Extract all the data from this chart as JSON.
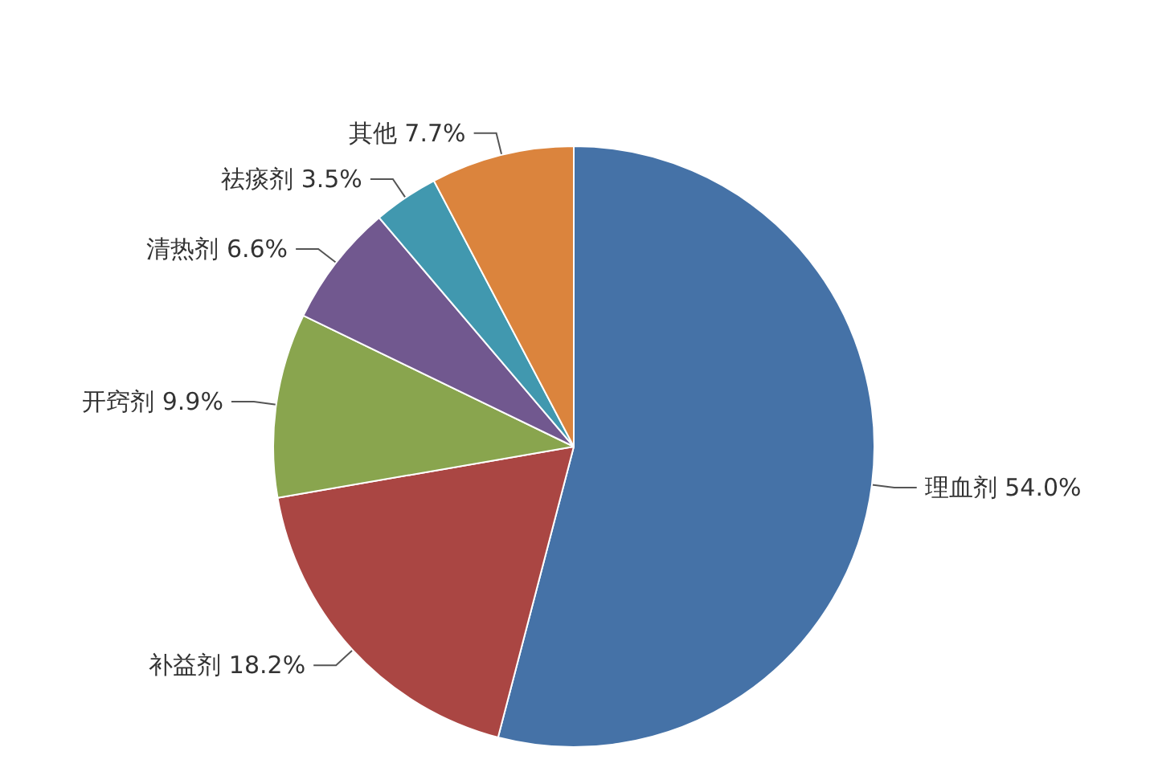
{
  "chart_data": {
    "type": "pie",
    "categories": [
      "理血剂",
      "补益剂",
      "开窍剂",
      "清热剂",
      "祛痰剂",
      "其他"
    ],
    "values": [
      54.0,
      18.2,
      9.9,
      6.6,
      3.5,
      7.7
    ],
    "colors": [
      "#4572a7",
      "#aa4643",
      "#89a54e",
      "#71588f",
      "#4198af",
      "#db843d"
    ],
    "value_labels": [
      "54.0%",
      "18.2%",
      "9.9%",
      "6.6%",
      "3.5%",
      "7.7%"
    ],
    "legend": false
  }
}
